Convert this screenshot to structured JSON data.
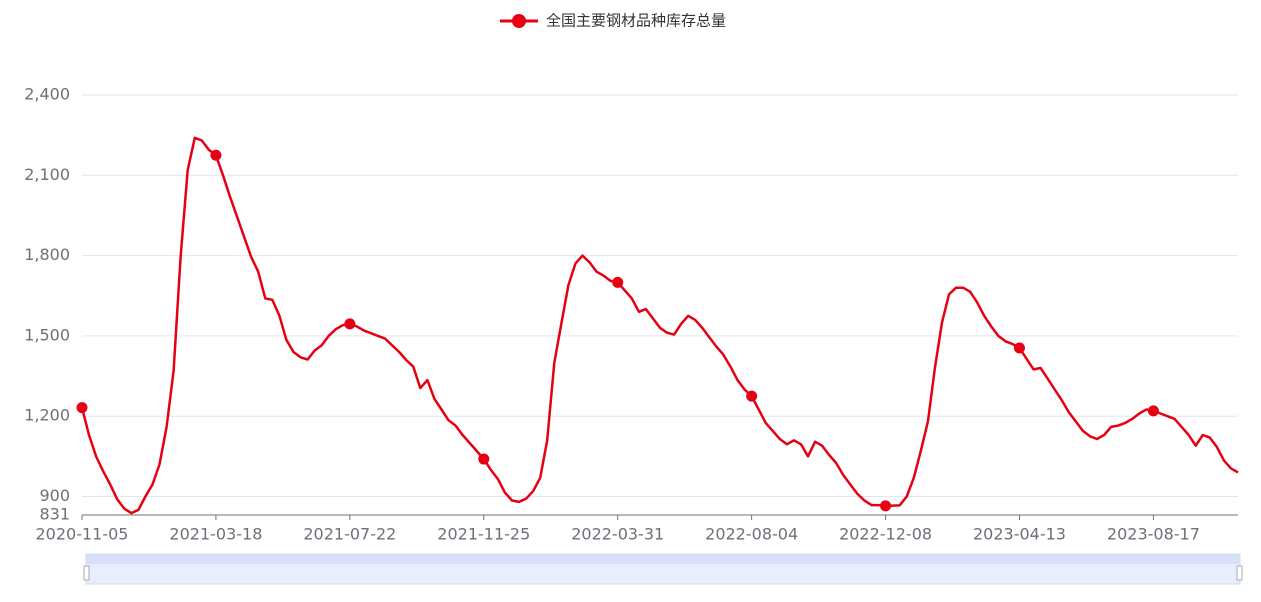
{
  "chart_data": {
    "type": "line",
    "x": [
      "2020-11-05",
      null,
      null,
      null,
      null,
      null,
      null,
      null,
      null,
      null,
      null,
      null,
      null,
      null,
      null,
      null,
      null,
      null,
      null,
      "2021-03-18",
      null,
      null,
      null,
      null,
      null,
      null,
      null,
      null,
      null,
      null,
      null,
      null,
      null,
      null,
      null,
      null,
      null,
      null,
      "2021-07-22",
      null,
      null,
      null,
      null,
      null,
      null,
      null,
      null,
      null,
      null,
      null,
      null,
      null,
      null,
      null,
      null,
      null,
      null,
      "2021-11-25",
      null,
      null,
      null,
      null,
      null,
      null,
      null,
      null,
      null,
      null,
      null,
      null,
      null,
      null,
      null,
      null,
      null,
      null,
      "2022-03-31",
      null,
      null,
      null,
      null,
      null,
      null,
      null,
      null,
      null,
      null,
      null,
      null,
      null,
      null,
      null,
      null,
      null,
      null,
      "2022-08-04",
      null,
      null,
      null,
      null,
      null,
      null,
      null,
      null,
      null,
      null,
      null,
      null,
      null,
      null,
      null,
      null,
      null,
      null,
      "2022-12-08",
      null,
      null,
      null,
      null,
      null,
      null,
      null,
      null,
      null,
      null,
      null,
      null,
      null,
      null,
      null,
      null,
      null,
      null,
      "2023-04-13",
      null,
      null,
      null,
      null,
      null,
      null,
      null,
      null,
      null,
      null,
      null,
      null,
      null,
      null,
      null,
      null,
      null,
      null,
      "2023-08-17",
      null,
      null,
      null,
      null,
      null,
      null,
      null,
      null,
      null,
      null,
      null,
      null
    ],
    "series": [
      {
        "name": "全国主要钢材品种库存总量",
        "color": "#e60012",
        "values": [
          1232,
          1130,
          1050,
          995,
          945,
          890,
          855,
          838,
          850,
          900,
          945,
          1020,
          1160,
          1370,
          1800,
          2120,
          2240,
          2230,
          2195,
          2175,
          2100,
          2020,
          1945,
          1870,
          1795,
          1740,
          1640,
          1635,
          1575,
          1485,
          1440,
          1420,
          1412,
          1445,
          1465,
          1500,
          1525,
          1540,
          1545,
          1535,
          1520,
          1510,
          1500,
          1490,
          1465,
          1440,
          1410,
          1385,
          1305,
          1335,
          1265,
          1225,
          1185,
          1165,
          1130,
          1100,
          1070,
          1040,
          1000,
          965,
          915,
          885,
          880,
          892,
          920,
          970,
          1110,
          1400,
          1545,
          1690,
          1770,
          1800,
          1775,
          1740,
          1725,
          1705,
          1700,
          1670,
          1640,
          1590,
          1600,
          1565,
          1530,
          1512,
          1505,
          1545,
          1575,
          1560,
          1530,
          1495,
          1460,
          1430,
          1385,
          1335,
          1300,
          1275,
          1225,
          1175,
          1145,
          1115,
          1095,
          1110,
          1095,
          1050,
          1105,
          1090,
          1055,
          1025,
          980,
          945,
          910,
          885,
          868,
          868,
          865,
          866,
          867,
          900,
          970,
          1070,
          1180,
          1380,
          1550,
          1655,
          1680,
          1680,
          1665,
          1625,
          1575,
          1535,
          1500,
          1480,
          1470,
          1455,
          1415,
          1375,
          1380,
          1340,
          1300,
          1260,
          1215,
          1180,
          1145,
          1125,
          1115,
          1130,
          1160,
          1165,
          1175,
          1190,
          1210,
          1225,
          1220,
          1210,
          1200,
          1190,
          1160,
          1130,
          1090,
          1130,
          1120,
          1085,
          1035,
          1005,
          990
        ]
      }
    ],
    "ylim": [
      831,
      2400
    ],
    "yticks": [
      831,
      900,
      {
        "value": 1200,
        "label": "1,200"
      },
      {
        "value": 1500,
        "label": "1,500"
      },
      {
        "value": 1800,
        "label": "1,800"
      },
      {
        "value": 2100,
        "label": "2,100"
      },
      {
        "value": 2400,
        "label": "2,400"
      }
    ],
    "grid": true
  }
}
